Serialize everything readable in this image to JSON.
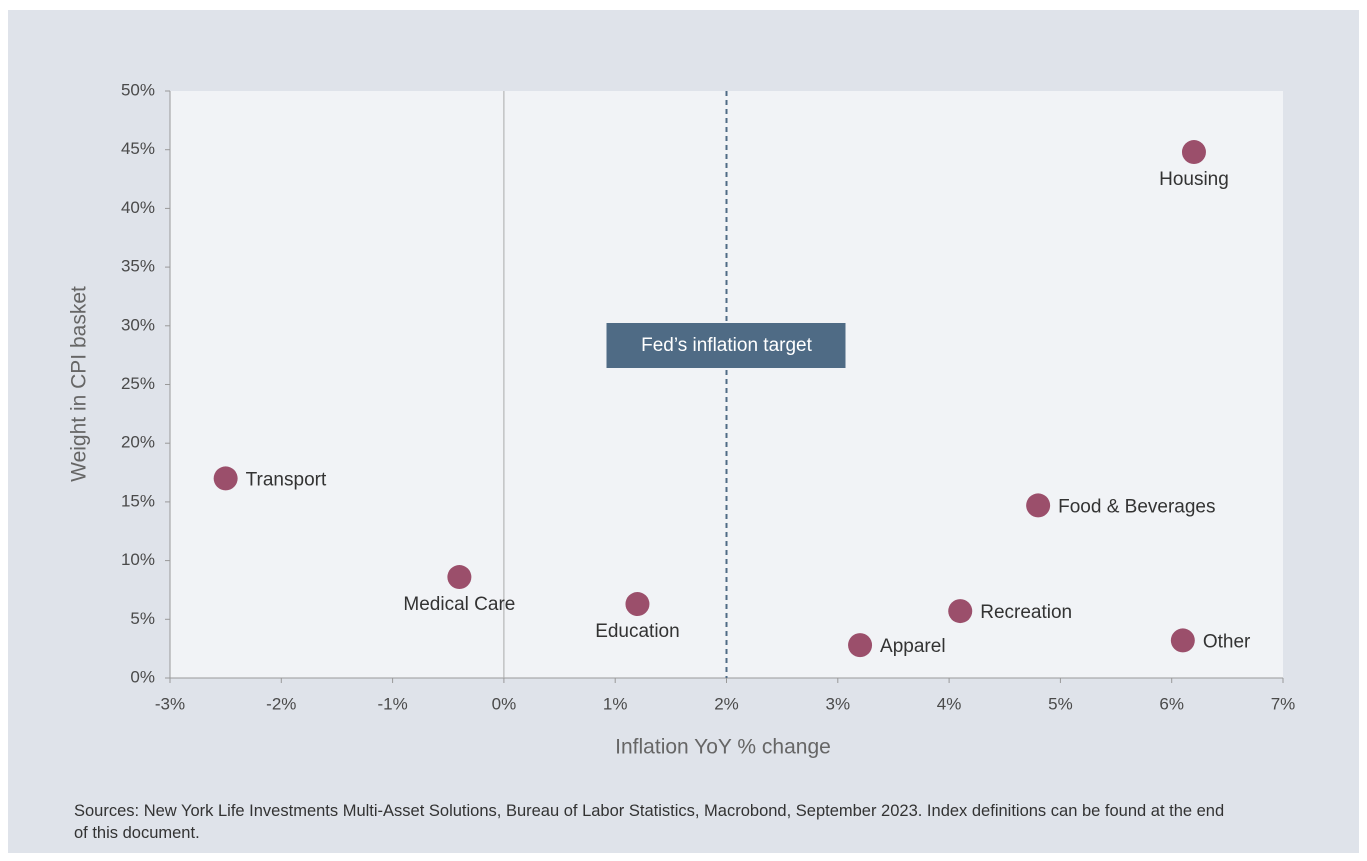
{
  "chart_data": {
    "type": "scatter",
    "xlabel": "Inflation YoY % change",
    "ylabel": "Weight in CPI basket",
    "point_labels": [
      "Transport",
      "Medical Care",
      "Education",
      "Apparel",
      "Recreation",
      "Food & Beverages",
      "Housing",
      "Other"
    ],
    "x": [
      -2.5,
      -0.4,
      1.2,
      3.2,
      4.1,
      4.8,
      6.2,
      6.1
    ],
    "values": [
      17.0,
      8.6,
      6.3,
      2.8,
      5.7,
      14.7,
      44.8,
      3.2
    ],
    "color": "#9b4f6b",
    "xlim": [
      -3,
      7
    ],
    "ylim": [
      0,
      50
    ],
    "xticks": [
      {
        "value": -3,
        "label": "-3%"
      },
      {
        "value": -2,
        "label": "-2%"
      },
      {
        "value": -1,
        "label": "-1%"
      },
      {
        "value": 0,
        "label": "0%"
      },
      {
        "value": 1,
        "label": "1%"
      },
      {
        "value": 2,
        "label": "2%"
      },
      {
        "value": 3,
        "label": "3%"
      },
      {
        "value": 4,
        "label": "4%"
      },
      {
        "value": 5,
        "label": "5%"
      },
      {
        "value": 6,
        "label": "6%"
      },
      {
        "value": 7,
        "label": "7%"
      }
    ],
    "yticks": [
      {
        "value": 0,
        "label": "0%"
      },
      {
        "value": 5,
        "label": "5%"
      },
      {
        "value": 10,
        "label": "10%"
      },
      {
        "value": 15,
        "label": "15%"
      },
      {
        "value": 20,
        "label": "20%"
      },
      {
        "value": 25,
        "label": "25%"
      },
      {
        "value": 30,
        "label": "30%"
      },
      {
        "value": 35,
        "label": "35%"
      },
      {
        "value": 40,
        "label": "40%"
      },
      {
        "value": 45,
        "label": "45%"
      },
      {
        "value": 50,
        "label": "50%"
      }
    ],
    "annotation": {
      "text": "Fed’s inflation target",
      "x": 2,
      "color": "#4f6b85"
    },
    "source": "Sources: New York Life Investments Multi-Asset Solutions, Bureau of Labor Statistics, Macrobond, September 2023. Index definitions can be found at the end of this document."
  }
}
